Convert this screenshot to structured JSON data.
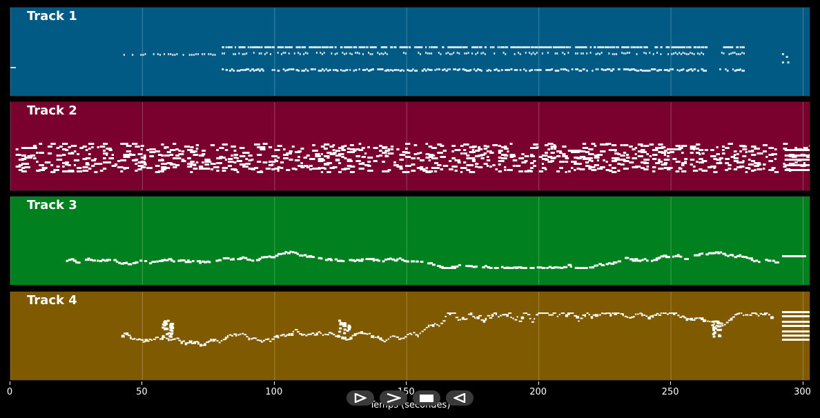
{
  "tracks": [
    {
      "title": "Track 1",
      "color": "#005a84",
      "style": "dotted-lines"
    },
    {
      "title": "Track 2",
      "color": "#7a002d",
      "style": "dense-bands"
    },
    {
      "title": "Track 3",
      "color": "#00801f",
      "style": "melody-low"
    },
    {
      "title": "Track 4",
      "color": "#805a00",
      "style": "melody-wavy"
    }
  ],
  "axis": {
    "ticks": [
      "0",
      "50",
      "100",
      "150",
      "200",
      "250",
      "300"
    ],
    "tick_values": [
      0,
      50,
      100,
      150,
      200,
      250,
      300
    ],
    "xmin": 0,
    "xmax": 303,
    "label": "Temps (secondes)"
  },
  "controls": [
    {
      "name": "play-icon",
      "kind": "play"
    },
    {
      "name": "forward-icon",
      "kind": "forward"
    },
    {
      "name": "stop-icon",
      "kind": "stop"
    },
    {
      "name": "rewind-icon",
      "kind": "rewind"
    }
  ]
}
